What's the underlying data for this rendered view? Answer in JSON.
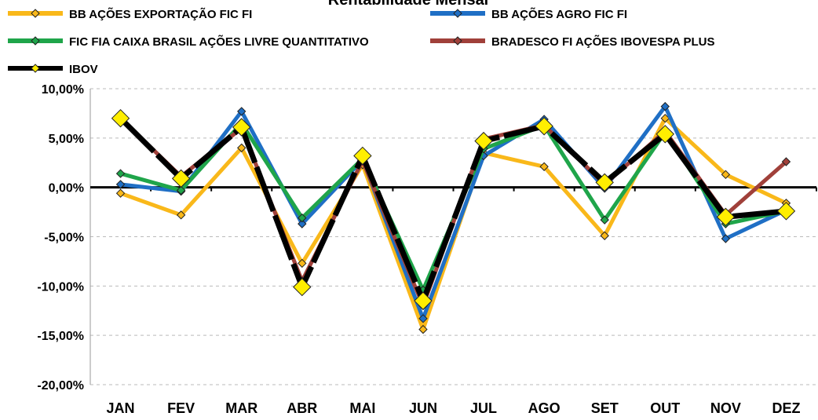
{
  "chart_data": {
    "type": "line",
    "title": "Rentabilidade Mensal",
    "categories": [
      "JAN",
      "FEV",
      "MAR",
      "ABR",
      "MAI",
      "JUN",
      "JUL",
      "AGO",
      "SET",
      "OUT",
      "NOV",
      "DEZ"
    ],
    "series": [
      {
        "name": "BB AÇÕES EXPORTAÇÃO FIC FI",
        "color": "#f9b81a",
        "values": [
          -0.6,
          -2.8,
          4.0,
          -7.7,
          2.3,
          -14.4,
          3.5,
          2.1,
          -4.9,
          7.0,
          1.3,
          -1.6
        ]
      },
      {
        "name": "BB AÇÕES AGRO FIC FI",
        "color": "#1f6fc5",
        "values": [
          0.3,
          -0.4,
          7.7,
          -3.7,
          2.8,
          -13.3,
          3.2,
          6.9,
          -0.1,
          8.2,
          -5.2,
          -2.3
        ]
      },
      {
        "name": "FIC FIA CAIXA BRASIL AÇÕES LIVRE QUANTITATIVO",
        "color": "#1fa54a",
        "values": [
          1.4,
          -0.3,
          6.5,
          -3.1,
          2.9,
          -10.4,
          3.9,
          6.3,
          -3.3,
          5.6,
          -3.7,
          -2.4
        ]
      },
      {
        "name": "BRADESCO FI AÇÕES IBOVESPA PLUS",
        "color": "#a0403a",
        "values": [
          7.0,
          1.1,
          6.0,
          -9.5,
          2.7,
          -12.0,
          4.9,
          6.3,
          0.3,
          5.7,
          -2.8,
          2.6
        ]
      },
      {
        "name": "IBOV",
        "color": "#000000",
        "marker_color": "#ffee00",
        "values": [
          7.0,
          0.9,
          6.1,
          -10.1,
          3.2,
          -11.5,
          4.7,
          6.2,
          0.5,
          5.4,
          -3.0,
          -2.4
        ]
      }
    ],
    "ylim": [
      -20,
      10
    ],
    "yticks": [
      {
        "value": -20,
        "label": "-20,00%"
      },
      {
        "value": -15,
        "label": "-15,00%"
      },
      {
        "value": -10,
        "label": "-10,00%"
      },
      {
        "value": -5,
        "label": "-5,00%"
      },
      {
        "value": 0,
        "label": "0,00%"
      },
      {
        "value": 5,
        "label": "5,00%"
      },
      {
        "value": 10,
        "label": "10,00%"
      }
    ],
    "grid": true
  }
}
